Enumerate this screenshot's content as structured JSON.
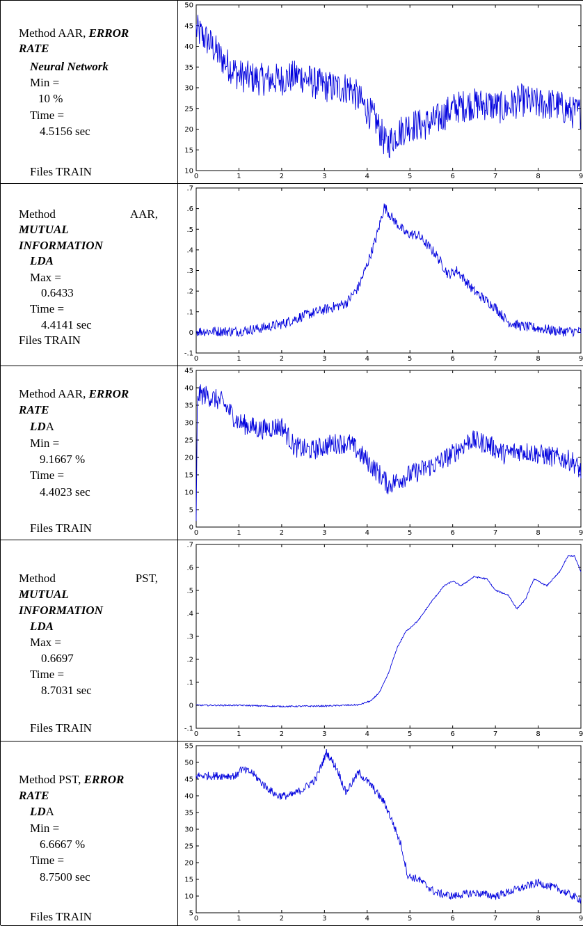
{
  "colors": {
    "series": "#0000dd",
    "axis": "#000000"
  },
  "rows": [
    {
      "method_label": "Method AAR,",
      "metric": "ERROR RATE",
      "metric_line1": "ERROR",
      "metric_line2": "RATE",
      "classifier": "Neural Network",
      "stat_label": "Min =",
      "stat_value": "10 %",
      "time_label": "Time =",
      "time_value": "4.5156 sec",
      "files": "Files TRAIN"
    },
    {
      "method_word": "Method",
      "method_code": "AAR,",
      "metric_line1": "MUTUAL",
      "metric_line2": "INFORMATION",
      "classifier": "LDA",
      "stat_label": "Max =",
      "stat_value": "0.6433",
      "time_label": "Time =",
      "time_value": "4.4141 sec",
      "files": "Files TRAIN"
    },
    {
      "method_label": "Method AAR,",
      "metric_line1": "ERROR",
      "metric_line2": "RATE",
      "classifier_bold": "LD",
      "classifier_plain": "A",
      "stat_label": "Min =",
      "stat_value": "9.1667 %",
      "time_label": "Time =",
      "time_value": "4.4023 sec",
      "files": "Files TRAIN"
    },
    {
      "method_word": "Method",
      "method_code": "PST,",
      "metric_line1": "MUTUAL",
      "metric_line2": "INFORMATION",
      "classifier": "LDA",
      "stat_label": "Max =",
      "stat_value": "0.6697",
      "time_label": "Time =",
      "time_value": "8.7031 sec",
      "files": "Files TRAIN"
    },
    {
      "method_label": "Method PST,",
      "metric_line1": "ERROR",
      "metric_line2": "RATE",
      "classifier_bold": "LD",
      "classifier_plain": "A",
      "stat_label": "Min =",
      "stat_value": "6.6667 %",
      "time_label": "Time =",
      "time_value": "8.7500 sec",
      "files": "Files TRAIN"
    }
  ],
  "chart_data": [
    {
      "type": "line",
      "xlim": [
        0,
        9
      ],
      "ylim": [
        10,
        50
      ],
      "xticks": [
        0,
        1,
        2,
        3,
        4,
        5,
        6,
        7,
        8,
        9
      ],
      "yticks": [
        10,
        15,
        20,
        25,
        30,
        35,
        40,
        45,
        50
      ],
      "noise": 4,
      "x": [
        0,
        0.3,
        0.6,
        1.0,
        1.5,
        2.0,
        2.4,
        2.8,
        3.2,
        3.6,
        3.9,
        4.2,
        4.45,
        4.7,
        5.0,
        5.3,
        5.6,
        6.0,
        6.4,
        6.8,
        7.2,
        7.6,
        8.0,
        8.4,
        8.8,
        9.0
      ],
      "y": [
        44,
        41,
        37,
        33,
        32,
        32,
        33,
        31,
        30,
        30,
        26,
        22,
        16,
        19,
        21,
        21,
        22,
        25,
        26,
        26,
        25,
        27,
        26,
        26,
        24,
        24
      ]
    },
    {
      "type": "line",
      "xlim": [
        0,
        9
      ],
      "ylim": [
        -0.1,
        0.7
      ],
      "xticks": [
        0,
        1,
        2,
        3,
        4,
        5,
        6,
        7,
        8,
        9
      ],
      "yticks": [
        -0.1,
        0,
        0.1,
        0.2,
        0.3,
        0.4,
        0.5,
        0.6,
        0.7
      ],
      "noise": 0.025,
      "x": [
        0,
        1.0,
        1.5,
        2.0,
        2.5,
        3.0,
        3.5,
        3.8,
        4.0,
        4.2,
        4.4,
        4.6,
        4.9,
        5.2,
        5.6,
        5.9,
        6.1,
        6.5,
        7.0,
        7.3,
        7.6,
        8.0,
        8.5,
        9.0
      ],
      "y": [
        0.005,
        0.005,
        0.02,
        0.04,
        0.08,
        0.11,
        0.14,
        0.22,
        0.33,
        0.45,
        0.61,
        0.55,
        0.48,
        0.47,
        0.38,
        0.28,
        0.3,
        0.2,
        0.12,
        0.05,
        0.03,
        0.02,
        0.005,
        0.005
      ]
    },
    {
      "type": "line",
      "xlim": [
        0,
        9
      ],
      "ylim": [
        0,
        45
      ],
      "xticks": [
        0,
        1,
        2,
        3,
        4,
        5,
        6,
        7,
        8,
        9
      ],
      "yticks": [
        0,
        5,
        10,
        15,
        20,
        25,
        30,
        35,
        40,
        45
      ],
      "noise": 3,
      "x": [
        0,
        0.03,
        0.2,
        0.6,
        1.0,
        1.5,
        2.0,
        2.3,
        2.7,
        3.2,
        3.6,
        4.0,
        4.3,
        4.5,
        4.8,
        5.2,
        5.6,
        6.0,
        6.4,
        6.8,
        7.2,
        7.6,
        8.0,
        8.4,
        8.8,
        9.0
      ],
      "y": [
        0,
        38,
        38,
        36,
        30,
        28,
        29,
        23,
        22,
        24,
        24,
        19,
        15,
        12,
        14,
        16,
        18,
        21,
        25,
        24,
        21,
        22,
        21,
        20,
        19,
        16
      ]
    },
    {
      "type": "line",
      "xlim": [
        0,
        9
      ],
      "ylim": [
        -0.1,
        0.7
      ],
      "xticks": [
        0,
        1,
        2,
        3,
        4,
        5,
        6,
        7,
        8,
        9
      ],
      "yticks": [
        -0.1,
        0,
        0.1,
        0.2,
        0.3,
        0.4,
        0.5,
        0.6,
        0.7
      ],
      "noise": 0.003,
      "x": [
        0,
        1.0,
        2.0,
        3.0,
        3.8,
        4.1,
        4.3,
        4.5,
        4.7,
        4.9,
        5.2,
        5.5,
        5.8,
        6.0,
        6.2,
        6.5,
        6.8,
        7.0,
        7.3,
        7.5,
        7.7,
        7.9,
        8.2,
        8.5,
        8.7,
        8.85,
        9.0
      ],
      "y": [
        0.0,
        0.0,
        -0.005,
        -0.003,
        0.002,
        0.02,
        0.06,
        0.14,
        0.25,
        0.32,
        0.37,
        0.45,
        0.52,
        0.54,
        0.52,
        0.56,
        0.55,
        0.5,
        0.48,
        0.42,
        0.46,
        0.55,
        0.52,
        0.58,
        0.65,
        0.65,
        0.58
      ]
    },
    {
      "type": "line",
      "xlim": [
        0,
        9
      ],
      "ylim": [
        5,
        55
      ],
      "xticks": [
        0,
        1,
        2,
        3,
        4,
        5,
        6,
        7,
        8,
        9
      ],
      "yticks": [
        5,
        10,
        15,
        20,
        25,
        30,
        35,
        40,
        45,
        50,
        55
      ],
      "noise": 1.2,
      "x": [
        0,
        0.97,
        1.0,
        1.3,
        1.6,
        1.9,
        2.2,
        2.5,
        2.8,
        3.05,
        3.3,
        3.5,
        3.8,
        4.1,
        4.4,
        4.6,
        4.8,
        4.95,
        5.2,
        5.6,
        6.0,
        6.5,
        7.0,
        7.5,
        8.0,
        8.5,
        8.8,
        9.0
      ],
      "y": [
        46,
        46,
        48,
        47,
        43,
        40,
        40,
        42,
        45,
        53,
        48,
        41,
        47,
        43,
        38,
        32,
        25,
        16,
        15,
        11,
        10,
        11,
        10,
        12,
        14,
        12,
        10,
        9
      ]
    }
  ]
}
